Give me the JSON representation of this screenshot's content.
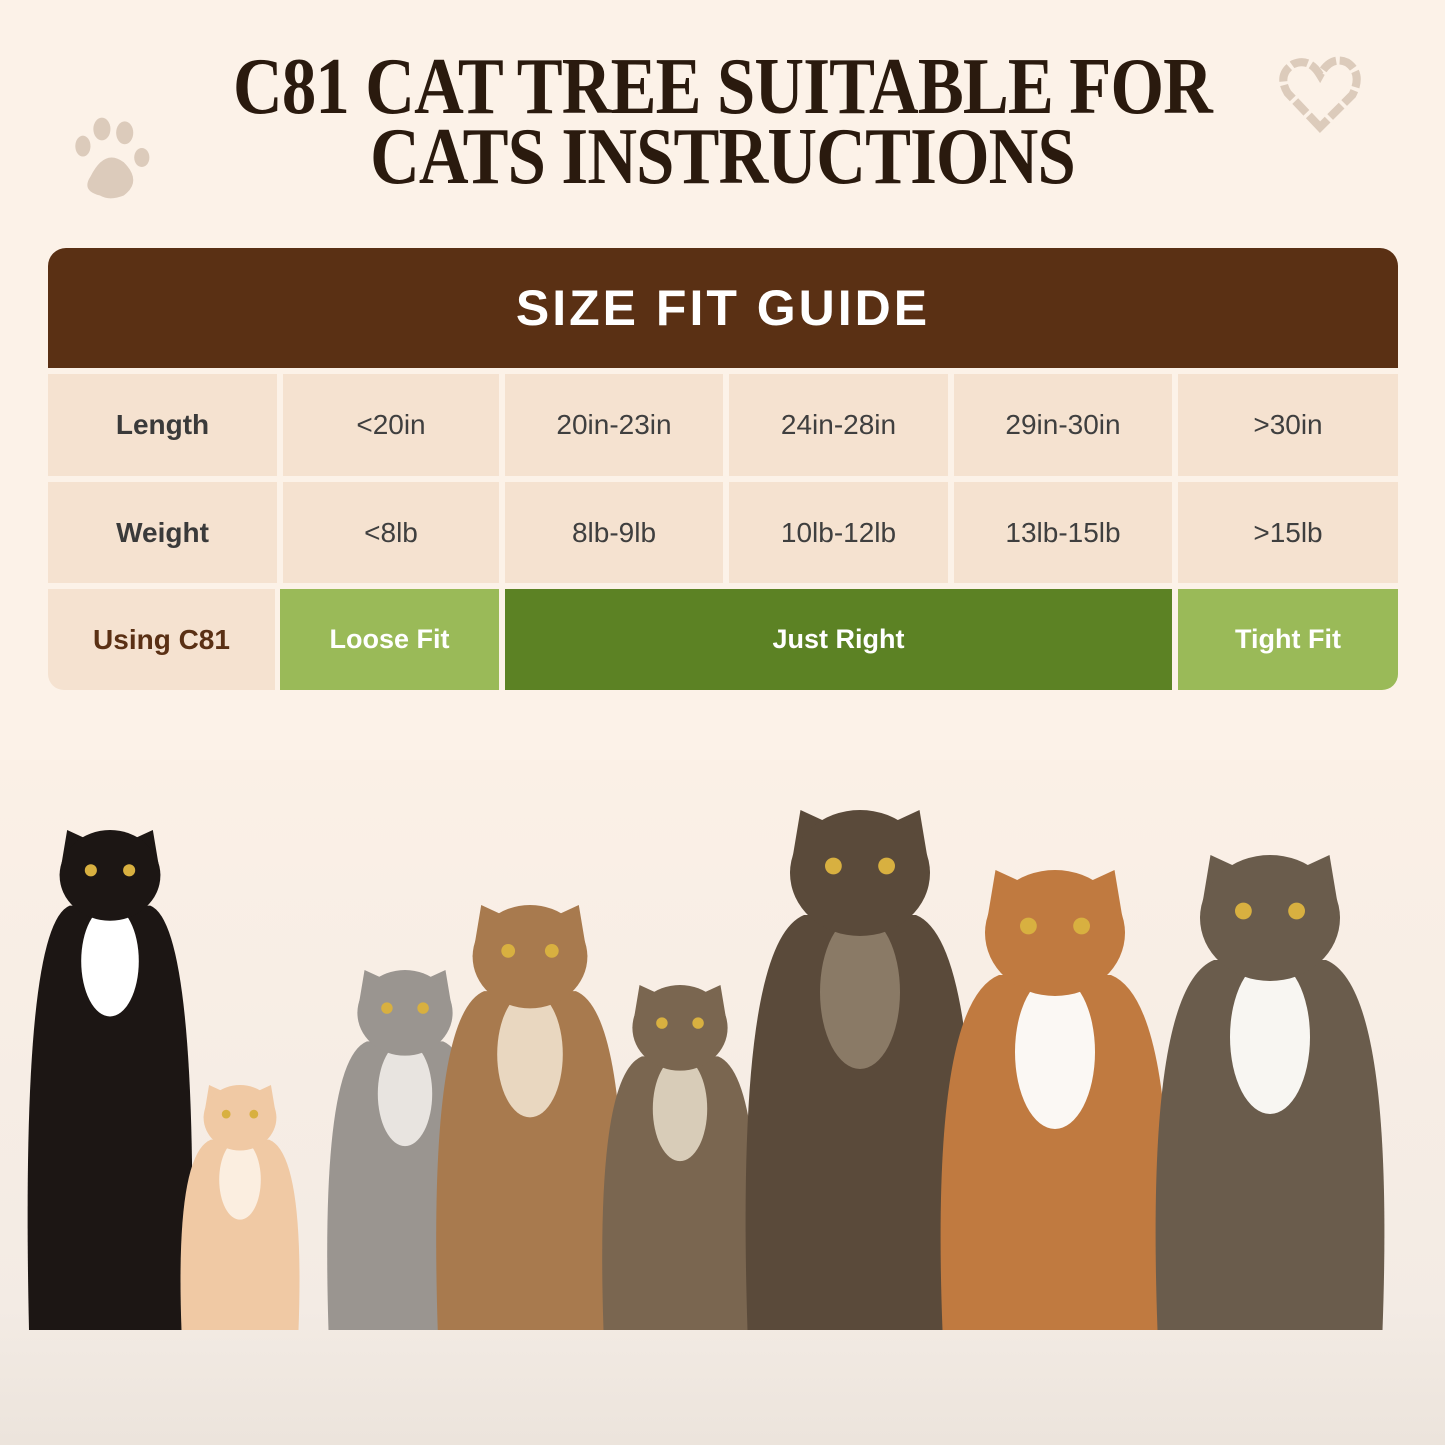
{
  "title": {
    "line1": "C81 CAT TREE SUITABLE FOR",
    "line2": "CATS INSTRUCTIONS"
  },
  "guide": {
    "heading": "SIZE FIT GUIDE",
    "rows": [
      {
        "label": "Length",
        "values": [
          "<20in",
          "20in-23in",
          "24in-28in",
          "29in-30in",
          ">30in"
        ]
      },
      {
        "label": "Weight",
        "values": [
          "<8lb",
          "8lb-9lb",
          "10lb-12lb",
          "13lb-15lb",
          ">15lb"
        ]
      }
    ],
    "usage": {
      "label": "Using C81",
      "fits": [
        {
          "label": "Loose Fit",
          "color": "#9aba58"
        },
        {
          "label": "Just Right",
          "color": "#5c8224"
        },
        {
          "label": "Tight Fit",
          "color": "#9aba58"
        }
      ]
    }
  },
  "colors": {
    "background": "#fcf2e8",
    "header": "#5a3014",
    "cell": "#f5e2d0"
  },
  "decor": {
    "icons": [
      "paw-print-icon",
      "heart-icon"
    ]
  }
}
